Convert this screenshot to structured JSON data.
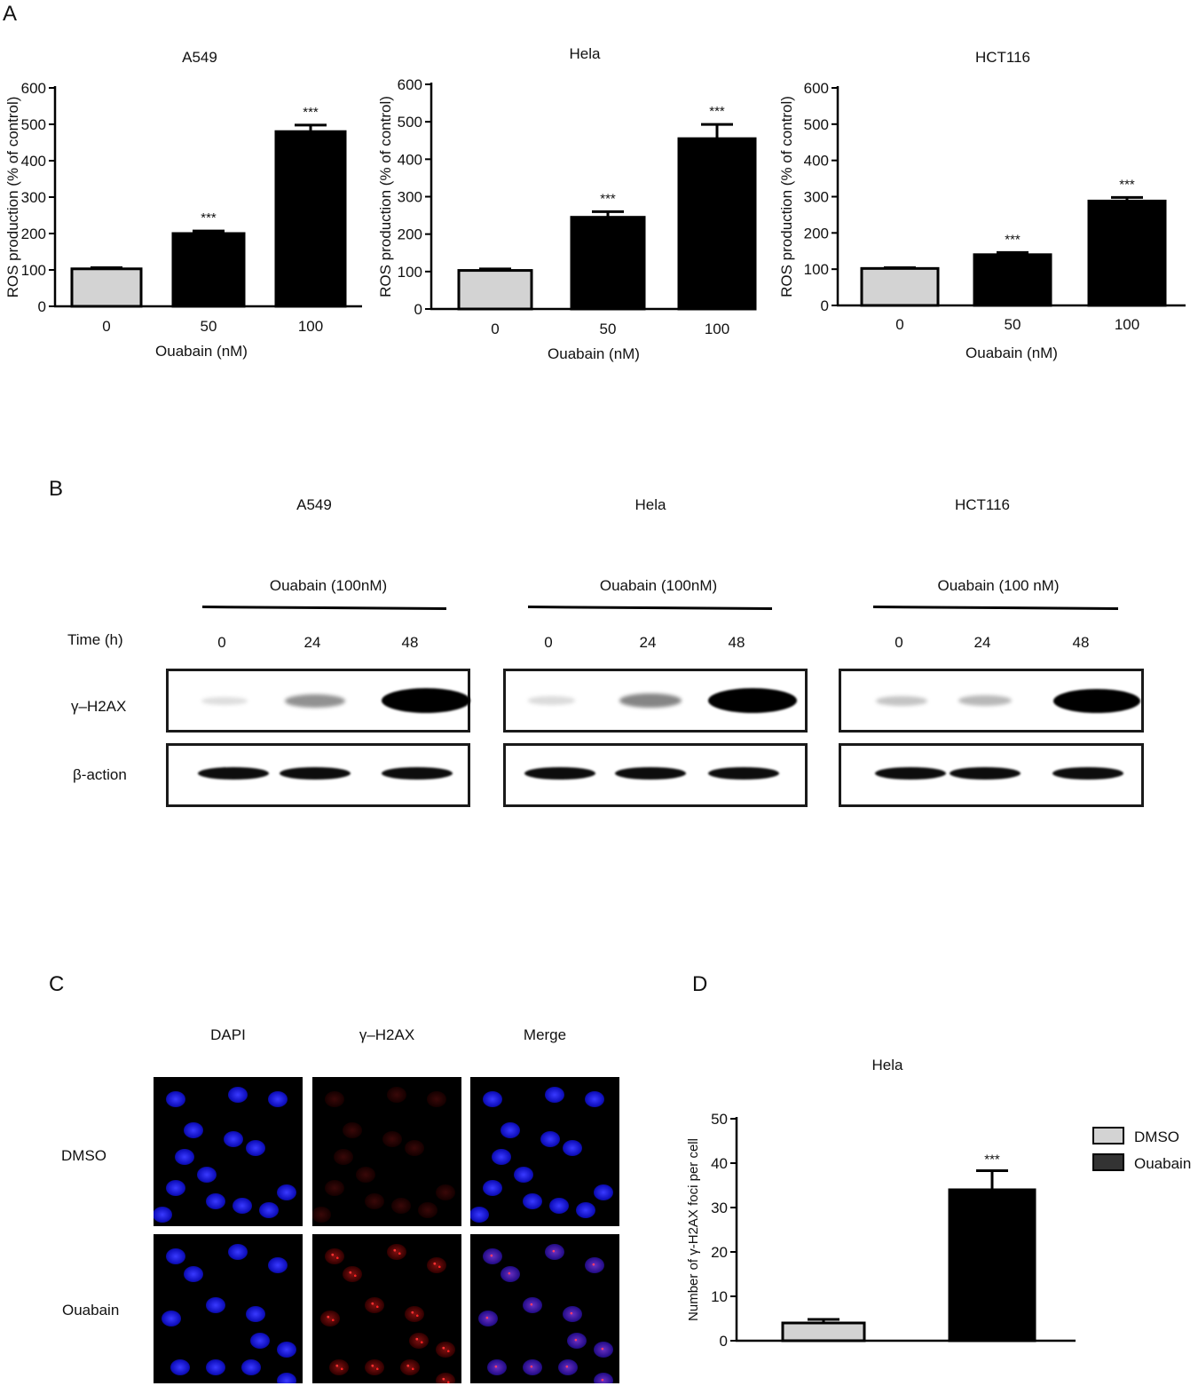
{
  "panels": {
    "a": "A",
    "b": "B",
    "c": "C",
    "d": "D"
  },
  "chart_data": [
    {
      "type": "bar",
      "panel": "A",
      "title": "A549",
      "categories": [
        "0",
        "50",
        "100"
      ],
      "values": [
        103,
        200,
        480
      ],
      "errors": [
        3,
        7,
        18
      ],
      "significance": [
        "",
        "***",
        "***"
      ],
      "bar_colors": [
        "#d3d3d3",
        "#000000",
        "#000000"
      ],
      "xlabel": "Ouabain (nM)",
      "ylabel": "ROS production (% of control)",
      "ylim": [
        0,
        600
      ],
      "yticks": [
        0,
        100,
        200,
        300,
        400,
        500,
        600
      ]
    },
    {
      "type": "bar",
      "panel": "A",
      "title": "Hela",
      "categories": [
        "0",
        "50",
        "100"
      ],
      "values": [
        103,
        245,
        455
      ],
      "errors": [
        4,
        15,
        38
      ],
      "significance": [
        "",
        "***",
        "***"
      ],
      "bar_colors": [
        "#d3d3d3",
        "#000000",
        "#000000"
      ],
      "xlabel": "Ouabain (nM)",
      "ylabel": "ROS production (% of control)",
      "ylim": [
        0,
        600
      ],
      "yticks": [
        0,
        100,
        200,
        300,
        400,
        500,
        600
      ]
    },
    {
      "type": "bar",
      "panel": "A",
      "title": "HCT116",
      "categories": [
        "0",
        "50",
        "100"
      ],
      "values": [
        102,
        140,
        288
      ],
      "errors": [
        2,
        6,
        10
      ],
      "significance": [
        "",
        "***",
        "***"
      ],
      "bar_colors": [
        "#d3d3d3",
        "#000000",
        "#000000"
      ],
      "xlabel": "Ouabain (nM)",
      "ylabel": "ROS production (% of control)",
      "ylim": [
        0,
        600
      ],
      "yticks": [
        0,
        100,
        200,
        300,
        400,
        500,
        600
      ]
    },
    {
      "type": "bar",
      "panel": "D",
      "title": "Hela",
      "categories": [
        "DMSO",
        "Ouabain"
      ],
      "values": [
        4,
        34
      ],
      "errors": [
        0.8,
        4.3
      ],
      "significance": [
        "",
        "***"
      ],
      "bar_colors": [
        "#d3d3d3",
        "#000000"
      ],
      "xlabel": "",
      "ylabel": "Number of γ-H2AX foci per cell",
      "ylim": [
        0,
        50
      ],
      "yticks": [
        0,
        10,
        20,
        30,
        40,
        50
      ],
      "legend": {
        "position": "right",
        "entries": [
          {
            "label": "DMSO",
            "color": "#d3d3d3"
          },
          {
            "label": "Ouabain",
            "color": "#333333"
          }
        ]
      }
    }
  ],
  "western": {
    "blots": [
      {
        "cell_line": "A549",
        "treatment": "Ouabain (100nM)",
        "times": [
          "0",
          "24",
          "48"
        ],
        "h2ax": [
          0.05,
          0.35,
          1.0
        ],
        "actin": [
          1,
          1,
          1
        ]
      },
      {
        "cell_line": "Hela",
        "treatment": "Ouabain (100nM)",
        "times": [
          "0",
          "24",
          "48"
        ],
        "h2ax": [
          0.06,
          0.4,
          1.0
        ],
        "actin": [
          1,
          1,
          1
        ]
      },
      {
        "cell_line": "HCT116",
        "treatment": "Ouabain (100 nM)",
        "times": [
          "0",
          "24",
          "48"
        ],
        "h2ax": [
          0.15,
          0.2,
          0.95
        ],
        "actin": [
          1,
          1,
          1
        ]
      }
    ],
    "time_label": "Time (h)",
    "row_labels": {
      "h2ax": "γ–H2AX",
      "actin": "β-action"
    }
  },
  "microscopy": {
    "columns": [
      "DAPI",
      "γ–H2AX",
      "Merge"
    ],
    "rows": [
      "DMSO",
      "Ouabain"
    ]
  }
}
